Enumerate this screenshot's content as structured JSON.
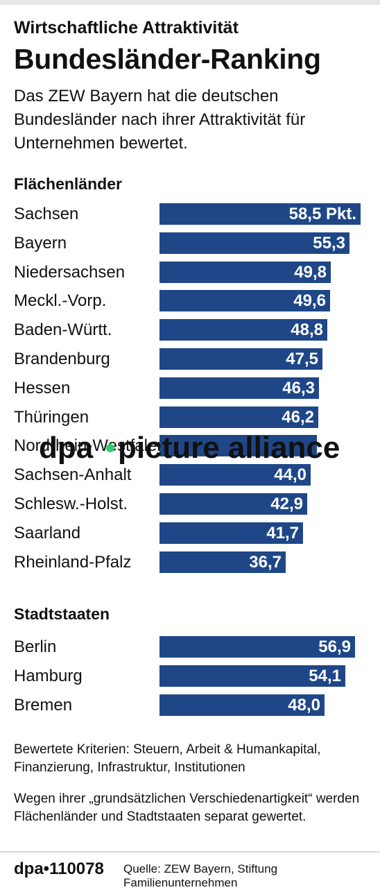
{
  "header": {
    "kicker": "Wirtschaftliche Attraktivität",
    "title": "Bundesländer-Ranking",
    "intro": "Das ZEW Bayern hat die deutschen Bundesländer nach ihrer Attraktivität für Unternehmen bewertet."
  },
  "chart_data": [
    {
      "type": "bar",
      "orientation": "horizontal",
      "title": "Flächenländer",
      "categories": [
        "Sachsen",
        "Bayern",
        "Niedersachsen",
        "Meckl.-Vorp.",
        "Baden-Württ.",
        "Brandenburg",
        "Hessen",
        "Thüringen",
        "Nordrhein-Westfalen",
        "Sachsen-Anhalt",
        "Schlesw.-Holst.",
        "Saarland",
        "Rheinland-Pfalz"
      ],
      "values": [
        58.5,
        55.3,
        49.8,
        49.6,
        48.8,
        47.5,
        46.3,
        46.2,
        45.8,
        44.0,
        42.9,
        41.7,
        36.7
      ],
      "value_labels": [
        "58,5 Pkt.",
        "55,3",
        "49,8",
        "49,6",
        "48,8",
        "47,5",
        "46,3",
        "46,2",
        "",
        "44,0",
        "42,9",
        "41,7",
        "36,7"
      ],
      "unit": "Pkt.",
      "bar_color": "#1f4788"
    },
    {
      "type": "bar",
      "orientation": "horizontal",
      "title": "Stadtstaaten",
      "categories": [
        "Berlin",
        "Hamburg",
        "Bremen"
      ],
      "values": [
        56.9,
        54.1,
        48.0
      ],
      "value_labels": [
        "56,9",
        "54,1",
        "48,0"
      ],
      "unit": "Pkt.",
      "bar_color": "#1f4788"
    }
  ],
  "notes": {
    "criteria": "Bewertete Kriterien: Steuern, Arbeit & Humankapital, Finanzierung, Infrastruktur, Institutionen",
    "separation": "Wegen ihrer „grundsätzlichen Verschiedenartigkeit“ werden Flächenländer und Stadtstaaten separat gewertet."
  },
  "footer": {
    "id": "dpa•110078",
    "source": "Quelle: ZEW Bayern, Stiftung Familienunternehmen"
  },
  "watermark": {
    "text_left": "dpa",
    "text_right": "picture alliance",
    "dot_color": "#2ecc71"
  }
}
